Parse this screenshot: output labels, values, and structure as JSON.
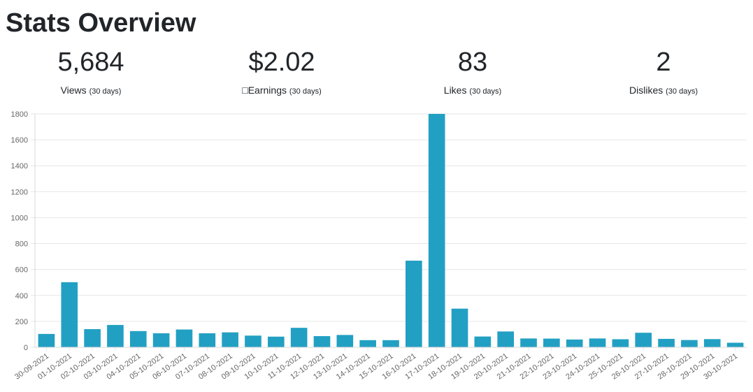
{
  "page": {
    "title": "Stats Overview"
  },
  "stats": [
    {
      "value": "5,684",
      "label": "Views",
      "period": "(30 days)"
    },
    {
      "value": "$2.02",
      "label": "□Earnings",
      "period": "(30 days)"
    },
    {
      "value": "83",
      "label": "Likes",
      "period": "(30 days)"
    },
    {
      "value": "2",
      "label": "Dislikes",
      "period": "(30 days)"
    }
  ],
  "colors": {
    "bar": "#22a0c3",
    "grid": "#e6e6e6",
    "tick_text": "#666666"
  },
  "chart_data": {
    "type": "bar",
    "title": "",
    "xlabel": "",
    "ylabel": "",
    "ylim": [
      0,
      1800
    ],
    "y_ticks": [
      0,
      200,
      400,
      600,
      800,
      1000,
      1200,
      1400,
      1600,
      1800
    ],
    "grid": true,
    "legend": "none",
    "categories": [
      "30-09-2021",
      "01-10-2021",
      "02-10-2021",
      "03-10-2021",
      "04-10-2021",
      "05-10-2021",
      "06-10-2021",
      "07-10-2021",
      "08-10-2021",
      "09-10-2021",
      "10-10-2021",
      "11-10-2021",
      "12-10-2021",
      "13-10-2021",
      "14-10-2021",
      "15-10-2021",
      "16-10-2021",
      "17-10-2021",
      "18-10-2021",
      "19-10-2021",
      "20-10-2021",
      "21-10-2021",
      "22-10-2021",
      "23-10-2021",
      "24-10-2021",
      "25-10-2021",
      "26-10-2021",
      "27-10-2021",
      "28-10-2021",
      "29-10-2021",
      "30-10-2021"
    ],
    "values": [
      103,
      502,
      140,
      172,
      125,
      108,
      137,
      108,
      115,
      90,
      82,
      150,
      86,
      95,
      55,
      55,
      668,
      1800,
      298,
      83,
      122,
      68,
      67,
      60,
      68,
      62,
      112,
      65,
      56,
      63,
      35
    ]
  }
}
